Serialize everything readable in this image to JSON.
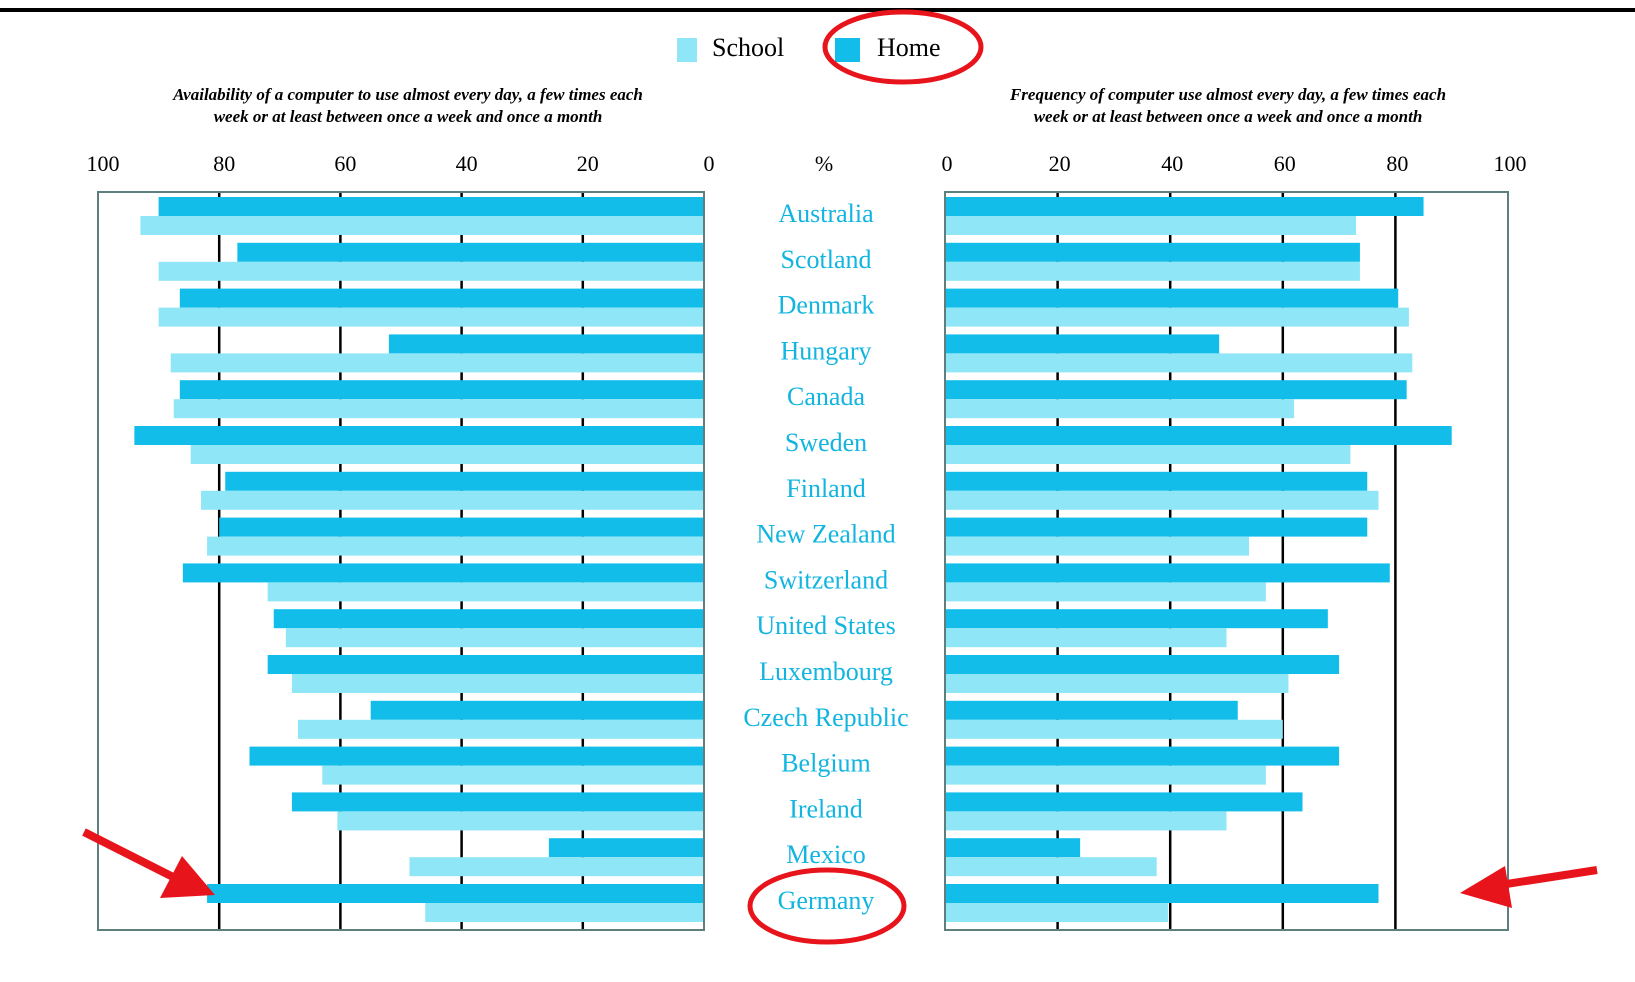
{
  "chart_data": [
    {
      "type": "bar",
      "orientation": "horizontal",
      "subtitle": [
        "Availability of a computer to use almost every day, a few times each",
        "week or at least between once a week and once a month"
      ],
      "unit": "%",
      "categories": [
        "Australia",
        "Scotland",
        "Denmark",
        "Hungary",
        "Canada",
        "Sweden",
        "Finland",
        "New Zealand",
        "Switzerland",
        "United States",
        "Luxembourg",
        "Czech Republic",
        "Belgium",
        "Ireland",
        "Mexico",
        "Germany"
      ],
      "xlim": [
        100,
        0
      ],
      "xticks": [
        100,
        80,
        60,
        40,
        20,
        0
      ],
      "grid": true,
      "series": [
        {
          "name": "Home",
          "color": "#12bde9",
          "values": [
            90,
            77,
            86.5,
            52,
            86.5,
            94,
            79,
            80,
            86,
            71,
            72,
            55,
            75,
            68,
            25.6,
            82
          ]
        },
        {
          "name": "School",
          "color": "#8ee6f7",
          "values": [
            93,
            90,
            90,
            88,
            87.5,
            84.7,
            83,
            82,
            72,
            69,
            68,
            67,
            63,
            60.5,
            48.6,
            46
          ]
        }
      ]
    },
    {
      "type": "bar",
      "orientation": "horizontal",
      "subtitle": [
        "Frequency of computer use almost every day, a few times each",
        "week or at least between once a week and once a month"
      ],
      "xlim": [
        0,
        100
      ],
      "xticks": [
        0,
        20,
        40,
        60,
        80,
        100
      ],
      "grid": true,
      "series": [
        {
          "color": "#12bde9",
          "values": [
            85,
            73.7,
            80.5,
            48.7,
            82,
            90,
            75,
            75,
            79,
            68,
            70,
            52,
            70,
            63.5,
            24,
            77
          ]
        },
        {
          "color": "#8ee6f7",
          "values": [
            73,
            73.7,
            82.4,
            83,
            62,
            72,
            77,
            54,
            57,
            50,
            61,
            60,
            57,
            50,
            37.6,
            39.6
          ]
        }
      ]
    }
  ]
}
